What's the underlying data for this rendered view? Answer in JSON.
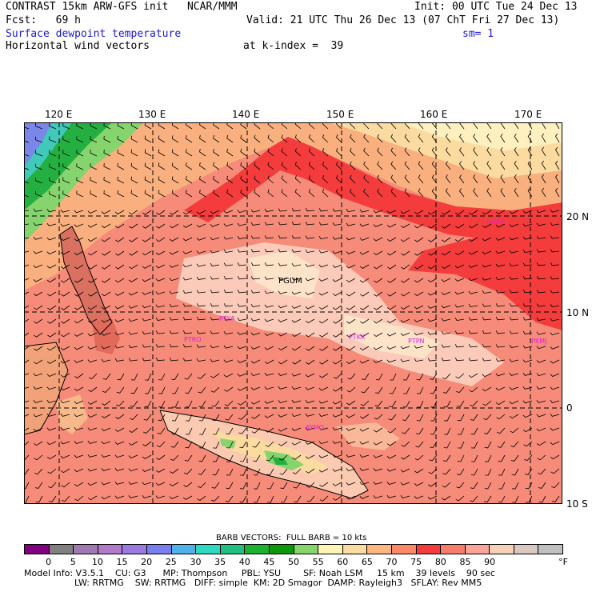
{
  "header": {
    "line1_left": "CONTRAST 15km ARW-GFS init   NCAR/MMM",
    "line1_right": "Init: 00 UTC Tue 24 Dec 13",
    "line2_left": "Fcst:   69 h",
    "line2_right": "Valid: 21 UTC Thu 26 Dec 13 (07 ChT Fri 27 Dec 13)",
    "field_title": "Surface dewpoint temperature",
    "smoothing": "sm= 1",
    "vector_title": "Horizontal wind vectors",
    "k_index": "at k-index =  39"
  },
  "map": {
    "lon_labels": [
      "120 E",
      "130 E",
      "140 E",
      "150 E",
      "160 E",
      "170 E"
    ],
    "lat_labels": [
      "20 N",
      "10 N",
      "0",
      "10 S"
    ],
    "stations": [
      "PGUM",
      "PWAK",
      "PTYA",
      "PTRO",
      "PTKK",
      "PTPN",
      "PKMJ",
      "AYMO"
    ]
  },
  "legend": {
    "barb_note": "BARB VECTORS:  FULL BARB = 10 kts",
    "ticks": [
      "0",
      "5",
      "10",
      "15",
      "20",
      "25",
      "30",
      "35",
      "40",
      "45",
      "50",
      "55",
      "60",
      "65",
      "70",
      "75",
      "80",
      "85",
      "90"
    ],
    "unit": "°F",
    "colors": [
      "#800080",
      "#808080",
      "#a07ab0",
      "#b27ac8",
      "#9a7ae0",
      "#7a7ff0",
      "#4fb2e8",
      "#2fd8c0",
      "#22c080",
      "#1ab030",
      "#0c9a0c",
      "#85d66a",
      "#fff4b8",
      "#fcdba0",
      "#fcb880",
      "#fc8868",
      "#f43c3c",
      "#f67c6c",
      "#faa49a",
      "#f8d0b8",
      "#d8cac2",
      "#c0c0c0"
    ]
  },
  "footer": {
    "line1": "Model Info: V3.5.1    CU: G3      MP: Thompson     PBL: YSU        SF: Noah LSM     15 km    39 levels    90 sec",
    "line2": "                  LW: RRTMG    SW: RRTMG   DIFF: simple  KM: 2D Smagor  DAMP: Rayleigh3   SFLAY: Rev MM5"
  }
}
